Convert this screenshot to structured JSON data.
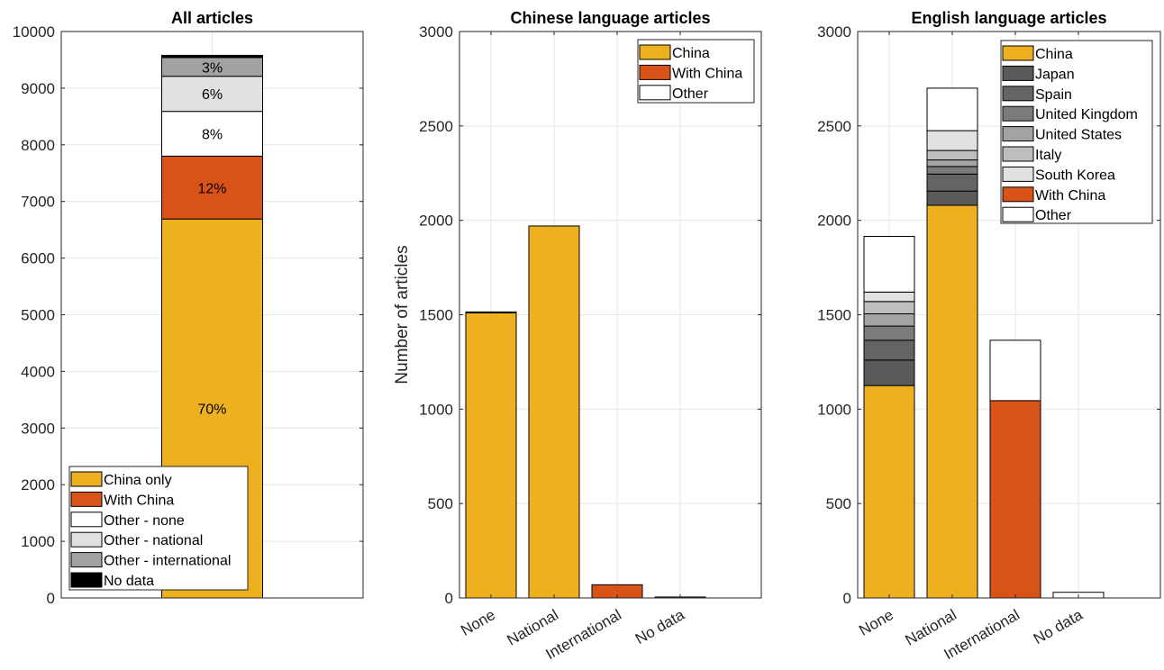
{
  "chart_data": [
    {
      "type": "bar",
      "stacked": true,
      "title": "All articles",
      "xlabel": "",
      "ylabel": "",
      "categories": [
        ""
      ],
      "ylim": [
        0,
        10000
      ],
      "yticks": [
        0,
        1000,
        2000,
        3000,
        4000,
        5000,
        6000,
        7000,
        8000,
        9000,
        10000
      ],
      "grid": true,
      "legend_position": "bottom-left",
      "series": [
        {
          "name": "China only",
          "color": "#EDB120",
          "values": [
            6690
          ],
          "label": "70%"
        },
        {
          "name": "With China",
          "color": "#D95319",
          "values": [
            1110
          ],
          "label": "12%"
        },
        {
          "name": "Other - none",
          "color": "#FFFFFF",
          "values": [
            790
          ],
          "label": "8%"
        },
        {
          "name": "Other - national",
          "color": "#E1E1E1",
          "values": [
            620
          ],
          "label": "6%"
        },
        {
          "name": "Other - international",
          "color": "#A2A2A2",
          "values": [
            330
          ],
          "label": "3%"
        },
        {
          "name": "No data",
          "color": "#000000",
          "values": [
            40
          ],
          "label": ""
        }
      ]
    },
    {
      "type": "bar",
      "stacked": true,
      "title": "Chinese language articles",
      "xlabel": "",
      "ylabel": "Number of articles",
      "categories": [
        "None",
        "National",
        "International",
        "No data"
      ],
      "ylim": [
        0,
        3000
      ],
      "yticks": [
        0,
        500,
        1000,
        1500,
        2000,
        2500,
        3000
      ],
      "grid": true,
      "legend_position": "top-right",
      "series": [
        {
          "name": "China",
          "color": "#EDB120",
          "values": [
            1510,
            1970,
            0,
            0
          ]
        },
        {
          "name": "With China",
          "color": "#D95319",
          "values": [
            0,
            0,
            70,
            0
          ]
        },
        {
          "name": "Other",
          "color": "#FFFFFF",
          "values": [
            5,
            0,
            0,
            5
          ]
        }
      ]
    },
    {
      "type": "bar",
      "stacked": true,
      "title": "English language articles",
      "xlabel": "",
      "ylabel": "",
      "categories": [
        "None",
        "National",
        "International",
        "No data"
      ],
      "ylim": [
        0,
        3000
      ],
      "yticks": [
        0,
        500,
        1000,
        1500,
        2000,
        2500,
        3000
      ],
      "grid": true,
      "legend_position": "top-right",
      "series": [
        {
          "name": "China",
          "color": "#EDB120",
          "values": [
            1125,
            2080,
            0,
            0
          ]
        },
        {
          "name": "Japan",
          "color": "#5A5A5A",
          "values": [
            135,
            75,
            0,
            0
          ]
        },
        {
          "name": "Spain",
          "color": "#646464",
          "values": [
            105,
            90,
            0,
            0
          ]
        },
        {
          "name": "United Kingdom",
          "color": "#7B7B7B",
          "values": [
            75,
            40,
            0,
            0
          ]
        },
        {
          "name": "United States",
          "color": "#A3A3A3",
          "values": [
            65,
            35,
            0,
            0
          ]
        },
        {
          "name": "Italy",
          "color": "#BEBEBE",
          "values": [
            65,
            50,
            0,
            0
          ]
        },
        {
          "name": "South Korea",
          "color": "#E1E1E1",
          "values": [
            50,
            105,
            0,
            0
          ]
        },
        {
          "name": "With China",
          "color": "#D95319",
          "values": [
            0,
            0,
            1045,
            0
          ]
        },
        {
          "name": "Other",
          "color": "#FFFFFF",
          "values": [
            295,
            225,
            320,
            30
          ]
        }
      ]
    }
  ]
}
